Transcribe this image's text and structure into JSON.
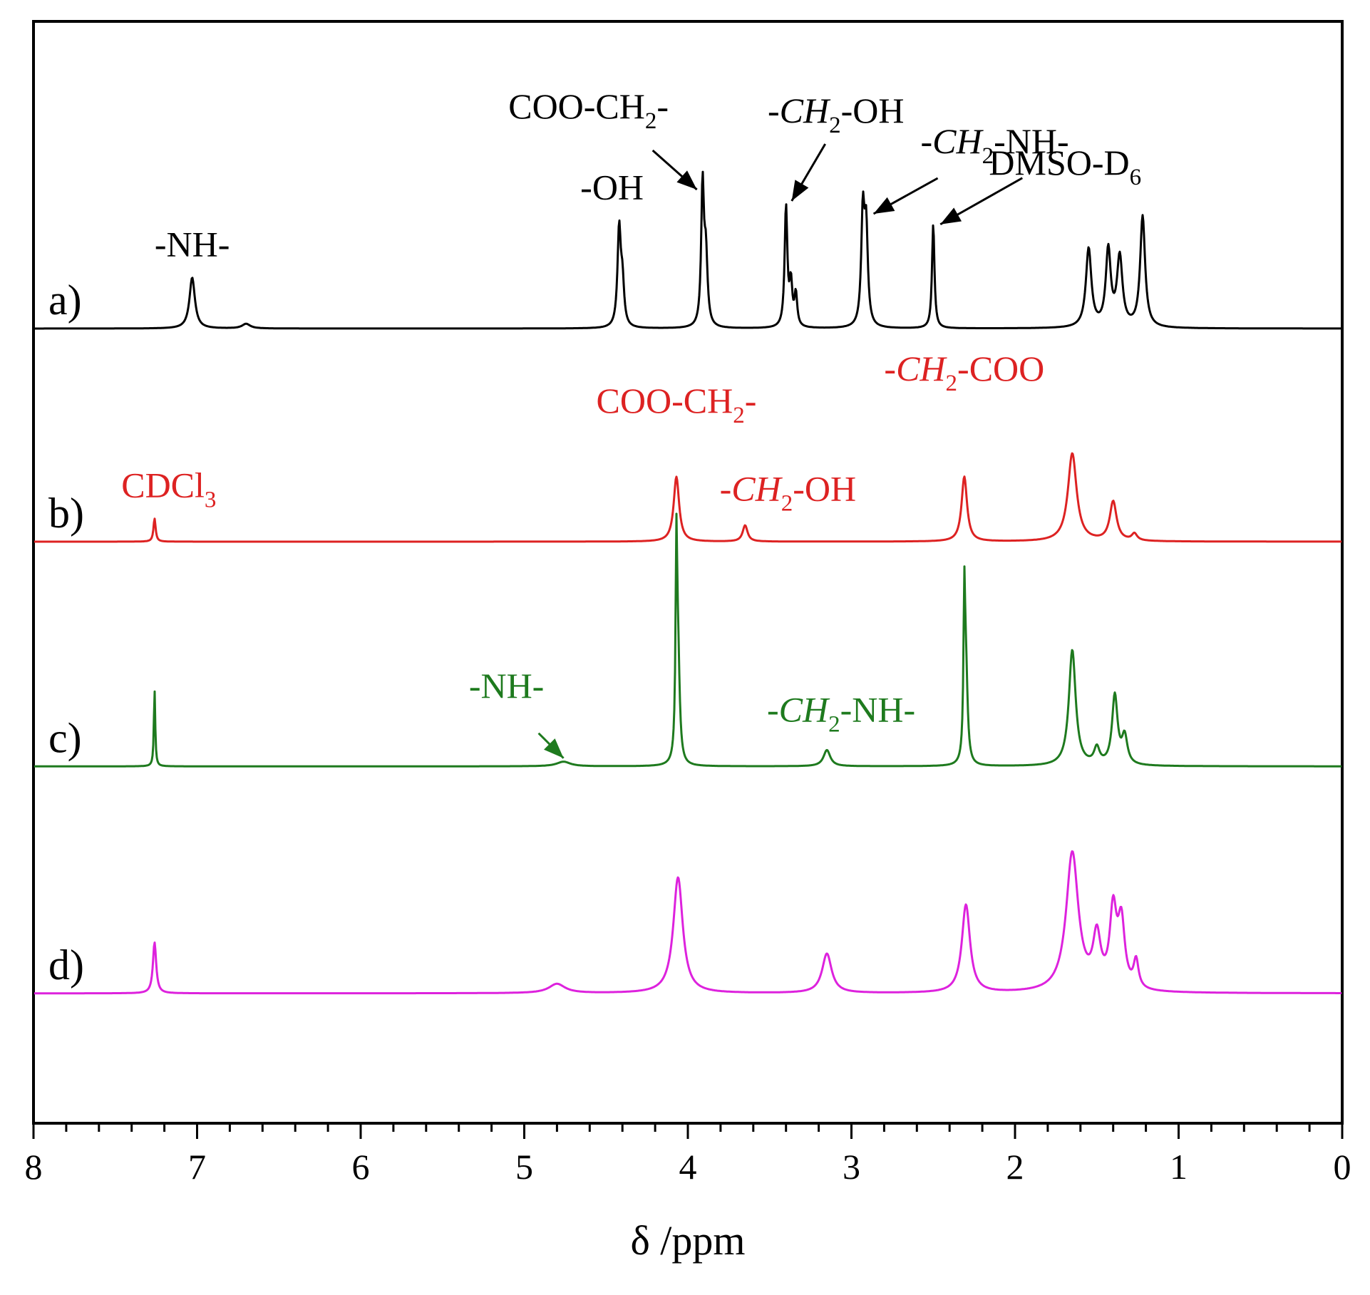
{
  "chart_data": {
    "type": "line",
    "title": "",
    "xlabel": "δ /ppm",
    "ylabel": "",
    "xlim": [
      8,
      0
    ],
    "x_reversed": true,
    "x_ticks": [
      "8",
      "7",
      "6",
      "5",
      "4",
      "3",
      "2",
      "1",
      "0"
    ],
    "grid": false,
    "legend": "none",
    "series": [
      {
        "label": "a)",
        "color": "#000000",
        "offset": 0.92,
        "peaks": [
          {
            "ppm": 7.03,
            "h": 0.22,
            "w": 0.02
          },
          {
            "ppm": 6.7,
            "h": 0.02,
            "w": 0.03
          },
          {
            "ppm": 4.42,
            "h": 0.42,
            "w": 0.012
          },
          {
            "ppm": 4.4,
            "h": 0.18,
            "w": 0.012
          },
          {
            "ppm": 3.91,
            "h": 0.6,
            "w": 0.01
          },
          {
            "ppm": 3.89,
            "h": 0.3,
            "w": 0.012
          },
          {
            "ppm": 3.4,
            "h": 0.52,
            "w": 0.01
          },
          {
            "ppm": 3.37,
            "h": 0.18,
            "w": 0.01
          },
          {
            "ppm": 3.34,
            "h": 0.14,
            "w": 0.01
          },
          {
            "ppm": 2.93,
            "h": 0.48,
            "w": 0.012
          },
          {
            "ppm": 2.91,
            "h": 0.4,
            "w": 0.012
          },
          {
            "ppm": 2.5,
            "h": 0.45,
            "w": 0.009
          },
          {
            "ppm": 1.55,
            "h": 0.34,
            "w": 0.02
          },
          {
            "ppm": 1.43,
            "h": 0.33,
            "w": 0.018
          },
          {
            "ppm": 1.36,
            "h": 0.3,
            "w": 0.02
          },
          {
            "ppm": 1.22,
            "h": 0.48,
            "w": 0.018
          }
        ]
      },
      {
        "label": "b)",
        "color": "#dd2222",
        "offset": 0.0,
        "peaks": [
          {
            "ppm": 7.26,
            "h": 0.1,
            "w": 0.008
          },
          {
            "ppm": 4.07,
            "h": 0.28,
            "w": 0.02
          },
          {
            "ppm": 3.65,
            "h": 0.07,
            "w": 0.018
          },
          {
            "ppm": 2.31,
            "h": 0.28,
            "w": 0.02
          },
          {
            "ppm": 1.65,
            "h": 0.38,
            "w": 0.032
          },
          {
            "ppm": 1.4,
            "h": 0.17,
            "w": 0.025
          },
          {
            "ppm": 1.27,
            "h": 0.03,
            "w": 0.02
          }
        ]
      },
      {
        "label": "c)",
        "color": "#1e7a1e",
        "offset": -0.97,
        "peaks": [
          {
            "ppm": 7.26,
            "h": 0.33,
            "w": 0.005
          },
          {
            "ppm": 4.76,
            "h": 0.02,
            "w": 0.05
          },
          {
            "ppm": 4.07,
            "h": 0.82,
            "w": 0.006
          },
          {
            "ppm": 4.06,
            "h": 0.45,
            "w": 0.012
          },
          {
            "ppm": 3.15,
            "h": 0.07,
            "w": 0.025
          },
          {
            "ppm": 2.31,
            "h": 0.62,
            "w": 0.006
          },
          {
            "ppm": 2.3,
            "h": 0.4,
            "w": 0.012
          },
          {
            "ppm": 1.65,
            "h": 0.5,
            "w": 0.025
          },
          {
            "ppm": 1.5,
            "h": 0.07,
            "w": 0.02
          },
          {
            "ppm": 1.39,
            "h": 0.3,
            "w": 0.02
          },
          {
            "ppm": 1.33,
            "h": 0.12,
            "w": 0.02
          }
        ]
      },
      {
        "label": "d)",
        "color": "#dd22dd",
        "offset": -1.95,
        "peaks": [
          {
            "ppm": 7.26,
            "h": 0.22,
            "w": 0.012
          },
          {
            "ppm": 4.8,
            "h": 0.04,
            "w": 0.06
          },
          {
            "ppm": 4.06,
            "h": 0.5,
            "w": 0.035
          },
          {
            "ppm": 3.15,
            "h": 0.17,
            "w": 0.035
          },
          {
            "ppm": 2.3,
            "h": 0.38,
            "w": 0.03
          },
          {
            "ppm": 1.65,
            "h": 0.6,
            "w": 0.045
          },
          {
            "ppm": 1.5,
            "h": 0.22,
            "w": 0.028
          },
          {
            "ppm": 1.4,
            "h": 0.33,
            "w": 0.025
          },
          {
            "ppm": 1.35,
            "h": 0.28,
            "w": 0.025
          },
          {
            "ppm": 1.26,
            "h": 0.12,
            "w": 0.018
          }
        ]
      }
    ],
    "annotations": [
      {
        "series": "a)",
        "ppm": 7.03,
        "pre": "-NH-",
        "italic": "",
        "sub": "",
        "post": ""
      },
      {
        "series": "a)",
        "ppm": 4.42,
        "pre": "-OH",
        "italic": "",
        "sub": "",
        "post": ""
      },
      {
        "series": "a)",
        "ppm": 3.91,
        "pre": "COO-CH",
        "italic": "",
        "sub": "2",
        "post": "-",
        "arrow": true
      },
      {
        "series": "a)",
        "ppm": 3.4,
        "pre": "-",
        "italic": "CH",
        "sub": "2",
        "post": "-OH",
        "arrow": true
      },
      {
        "series": "a)",
        "ppm": 2.93,
        "pre": "-",
        "italic": "CH",
        "sub": "2",
        "post": "-NH-",
        "arrow": true
      },
      {
        "series": "a)",
        "ppm": 2.5,
        "pre": "DMSO-D",
        "italic": "",
        "sub": "6",
        "post": "",
        "arrow": true
      },
      {
        "series": "b)",
        "ppm": 7.26,
        "pre": "CDCl",
        "italic": "",
        "sub": "3",
        "post": ""
      },
      {
        "series": "b)",
        "ppm": 4.07,
        "pre": "COO-CH",
        "italic": "",
        "sub": "2",
        "post": "-"
      },
      {
        "series": "b)",
        "ppm": 3.65,
        "pre": "-",
        "italic": "CH",
        "sub": "2",
        "post": "-OH"
      },
      {
        "series": "b)",
        "ppm": 2.31,
        "pre": "-",
        "italic": "CH",
        "sub": "2",
        "post": "-COO"
      },
      {
        "series": "c)",
        "ppm": 4.76,
        "pre": "-NH-",
        "italic": "",
        "sub": "",
        "post": "",
        "arrow": true
      },
      {
        "series": "c)",
        "ppm": 3.15,
        "pre": "-",
        "italic": "CH",
        "sub": "2",
        "post": "-NH-"
      }
    ]
  }
}
